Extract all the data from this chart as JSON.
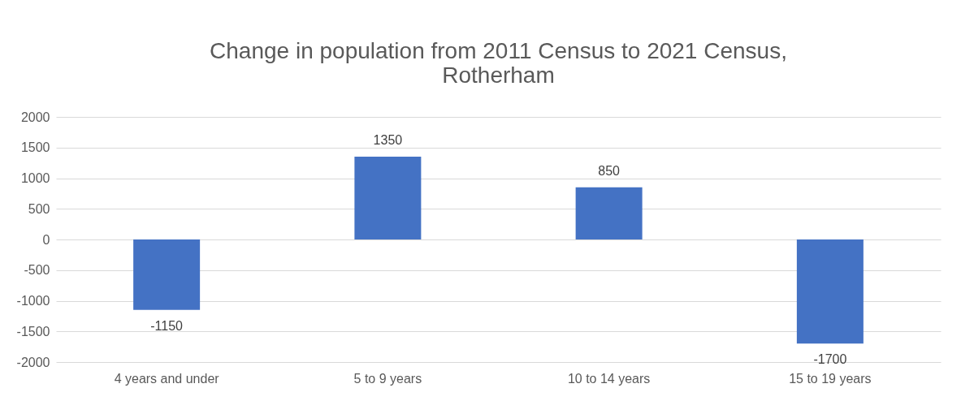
{
  "chart_data": {
    "type": "bar",
    "title": "Change in population from 2011 Census to 2021 Census, Rotherham",
    "categories": [
      "4 years and under",
      "5 to 9 years",
      "10 to 14 years",
      "15 to 19 years"
    ],
    "values": [
      -1150,
      1350,
      850,
      -1700
    ],
    "color": "#4472c4",
    "ylim": [
      -2000,
      2000
    ],
    "yticks": [
      -2000,
      -1500,
      -1000,
      -500,
      0,
      500,
      1000,
      1500,
      2000
    ],
    "grid": "y",
    "data_labels": true
  }
}
